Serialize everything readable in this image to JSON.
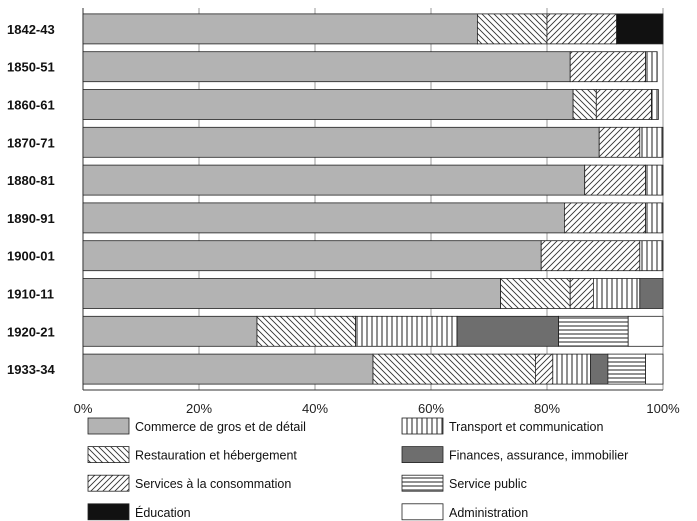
{
  "chart_data": {
    "type": "bar",
    "orientation": "horizontal",
    "stacked": true,
    "title": "",
    "xlabel": "",
    "ylabel": "",
    "xlim": [
      0,
      100
    ],
    "x_ticks": [
      "0%",
      "20%",
      "40%",
      "60%",
      "80%",
      "100%"
    ],
    "grid": true,
    "legend_position": "bottom",
    "categories": [
      "1842-43",
      "1850-51",
      "1860-61",
      "1870-71",
      "1880-81",
      "1890-91",
      "1900-01",
      "1910-11",
      "1920-21",
      "1933-34"
    ],
    "series": [
      {
        "name": "Commerce de gros et de détail",
        "pattern": "solid-gray",
        "color": "#b3b3b3",
        "values": [
          68,
          84,
          84.5,
          89,
          86.5,
          83,
          79,
          72,
          30,
          50
        ]
      },
      {
        "name": "Restauration et hébergement",
        "pattern": "backslash",
        "color": "#ffffff",
        "values": [
          12,
          0,
          4,
          0,
          0,
          0,
          0,
          12,
          17,
          28
        ]
      },
      {
        "name": "Services à la consommation",
        "pattern": "slash",
        "color": "#ffffff",
        "values": [
          12,
          13,
          9.5,
          7,
          10.5,
          14,
          17,
          4,
          0,
          3
        ]
      },
      {
        "name": "Éducation",
        "pattern": "solid-black",
        "color": "#111111",
        "values": [
          8,
          0,
          0,
          0,
          0,
          0,
          0,
          0,
          0,
          0
        ]
      },
      {
        "name": "Transport et communication",
        "pattern": "vertical",
        "color": "#ffffff",
        "values": [
          0,
          2,
          1.2,
          4,
          3,
          3,
          4,
          8,
          17.5,
          6.5
        ]
      },
      {
        "name": "Finances, assurance, immobilier",
        "pattern": "solid-dark",
        "color": "#6e6e6e",
        "values": [
          0,
          0,
          0,
          0,
          0,
          0,
          0,
          4,
          17.5,
          3
        ]
      },
      {
        "name": "Service public",
        "pattern": "horizontal",
        "color": "#ffffff",
        "values": [
          0,
          0,
          0,
          0,
          0,
          0,
          0,
          0,
          12,
          6.5
        ]
      },
      {
        "name": "Administration",
        "pattern": "solid-white",
        "color": "#ffffff",
        "values": [
          0,
          0,
          0,
          0,
          0,
          0,
          0,
          0,
          6,
          3
        ]
      }
    ],
    "legend": {
      "left": [
        "Commerce de gros et de détail",
        "Restauration et hébergement",
        "Services à la consommation",
        "Éducation"
      ],
      "right": [
        "Transport et communication",
        "Finances, assurance, immobilier",
        "Service public",
        "Administration"
      ]
    }
  }
}
